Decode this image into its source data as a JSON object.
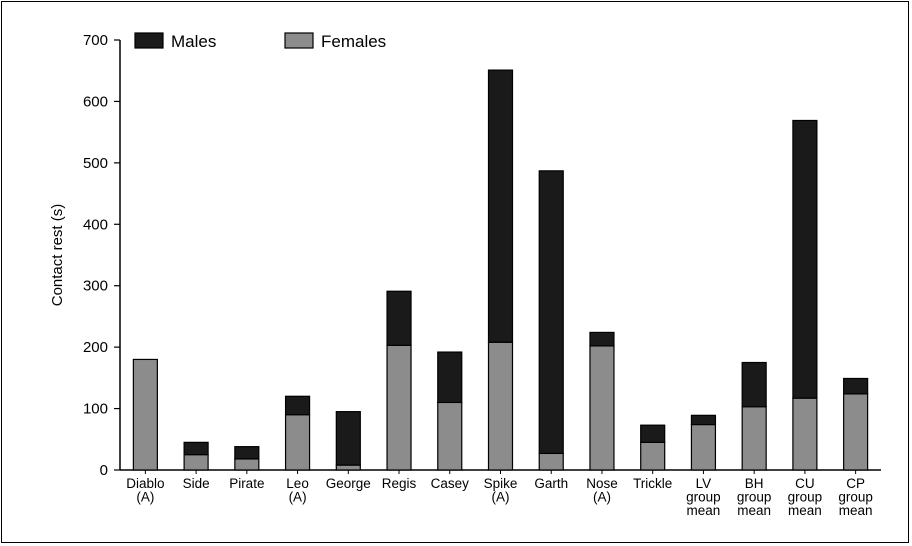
{
  "chart_data": {
    "type": "bar",
    "stacked": true,
    "title": "",
    "xlabel": "",
    "ylabel": "Contact rest (s)",
    "ylim": [
      0,
      700
    ],
    "yticks": [
      0,
      100,
      200,
      300,
      400,
      500,
      600,
      700
    ],
    "grid": false,
    "legend_placement": "top-left",
    "categories": [
      [
        "Diablo",
        "(A)"
      ],
      [
        "Side"
      ],
      [
        "Pirate"
      ],
      [
        "Leo",
        "(A)"
      ],
      [
        "George"
      ],
      [
        "Regis"
      ],
      [
        "Casey"
      ],
      [
        "Spike",
        "(A)"
      ],
      [
        "Garth"
      ],
      [
        "Nose",
        "(A)"
      ],
      [
        "Trickle"
      ],
      [
        "LV",
        "group",
        "mean"
      ],
      [
        "BH",
        "group",
        "mean"
      ],
      [
        "CU",
        "group",
        "mean"
      ],
      [
        "CP",
        "group",
        "mean"
      ]
    ],
    "series": [
      {
        "name": "Males",
        "color": "#1a1a1a",
        "values": [
          0,
          20,
          20,
          30,
          87,
          88,
          82,
          443,
          460,
          22,
          28,
          15,
          72,
          452,
          25
        ]
      },
      {
        "name": "Females",
        "color": "#8c8c8c",
        "values": [
          180,
          25,
          18,
          90,
          8,
          203,
          110,
          208,
          27,
          202,
          45,
          74,
          103,
          117,
          124
        ]
      }
    ]
  }
}
